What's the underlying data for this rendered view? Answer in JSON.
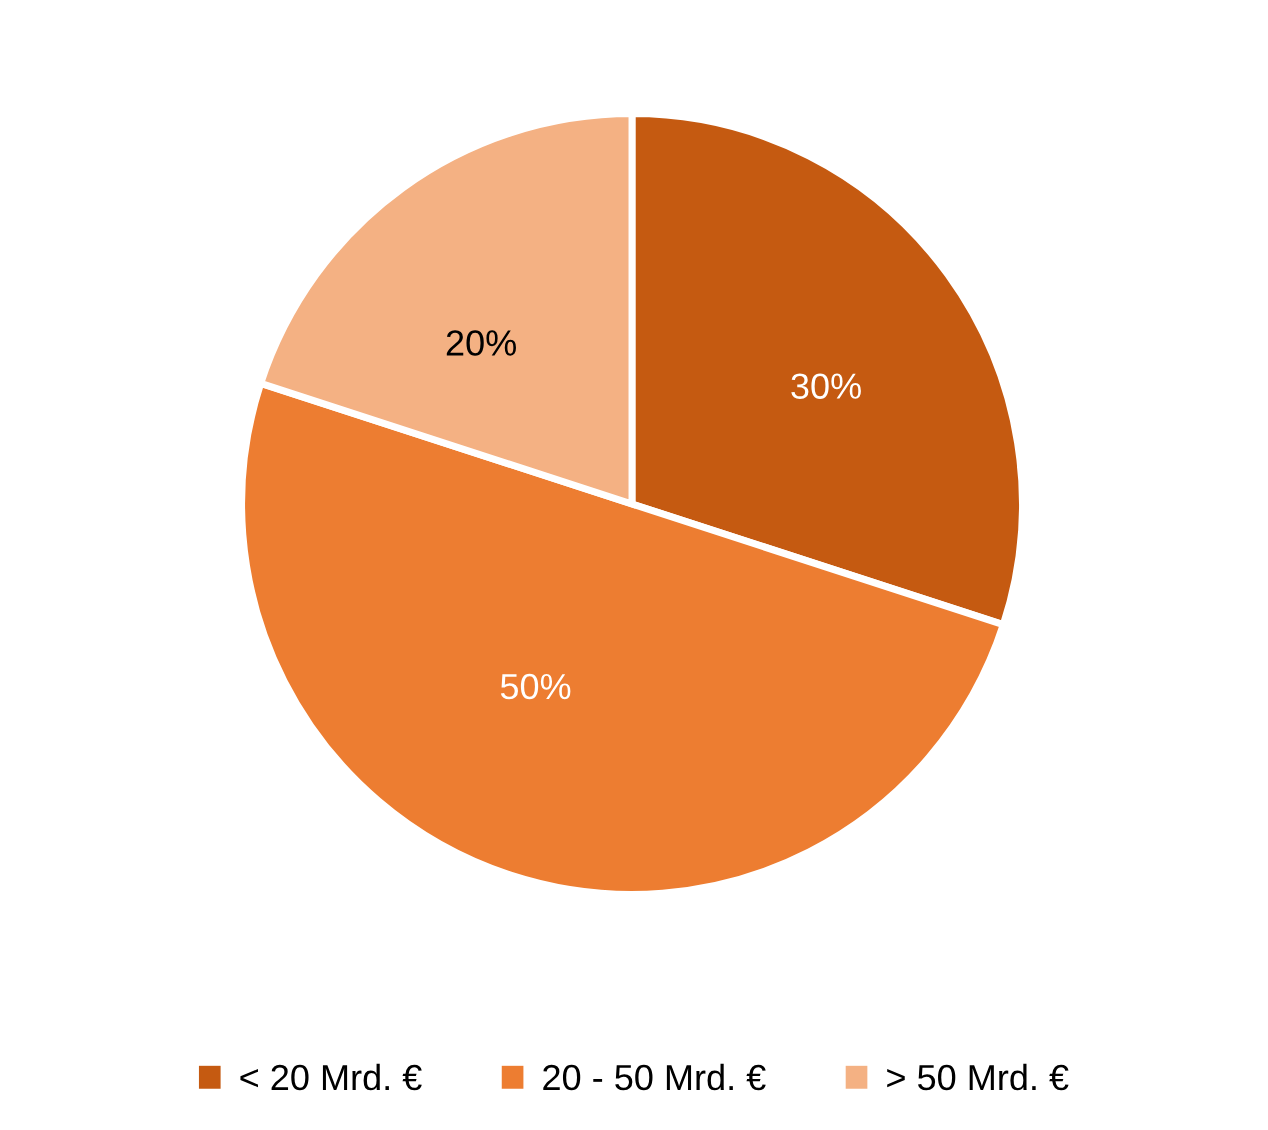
{
  "chart_data": {
    "type": "pie",
    "categories": [
      "< 20 Mrd. €",
      "20 - 50 Mrd. €",
      "> 50 Mrd. €"
    ],
    "values": [
      30,
      50,
      20
    ],
    "colors": [
      "#c55a11",
      "#ed7d31",
      "#f4b183"
    ],
    "value_labels": [
      "30%",
      "50%",
      "20%"
    ],
    "legend": "bottom"
  }
}
